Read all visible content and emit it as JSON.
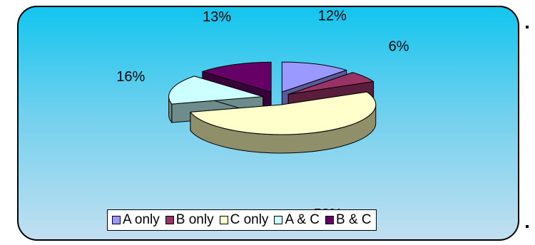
{
  "chart_data": {
    "type": "pie",
    "style": "3d-exploded",
    "categories": [
      "A only",
      "B only",
      "C only",
      "A & C",
      "B & C"
    ],
    "values": [
      12,
      6,
      53,
      16,
      13
    ],
    "labels": [
      "12%",
      "6%",
      "53%",
      "16%",
      "13%"
    ],
    "colors": {
      "top": [
        "#9999ff",
        "#993366",
        "#ffffcc",
        "#ccffff",
        "#660066"
      ],
      "side": [
        "#5a5a9c",
        "#5a1e3c",
        "#8f8f6a",
        "#6f8c8c",
        "#3a003a"
      ]
    },
    "legend_position": "bottom",
    "title": ""
  },
  "legend": {
    "items": [
      {
        "label": "A only",
        "color": "#9999ff"
      },
      {
        "label": "B only",
        "color": "#993366"
      },
      {
        "label": "C only",
        "color": "#ffffcc"
      },
      {
        "label": "A & C",
        "color": "#ccffff"
      },
      {
        "label": "B & C",
        "color": "#660066"
      }
    ]
  }
}
